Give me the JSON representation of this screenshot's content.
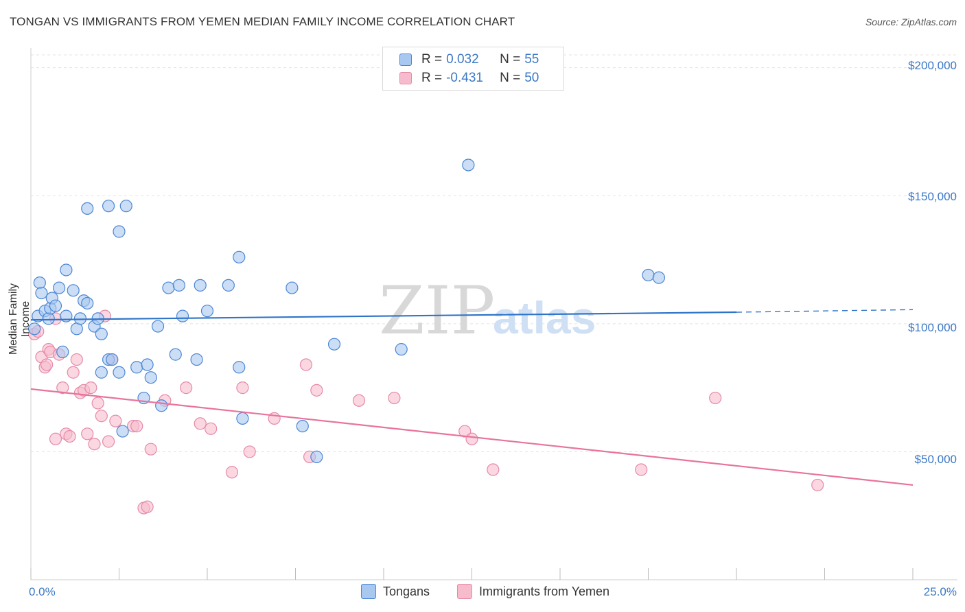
{
  "header": {
    "title": "TONGAN VS IMMIGRANTS FROM YEMEN MEDIAN FAMILY INCOME CORRELATION CHART",
    "source": "Source: ZipAtlas.com"
  },
  "legend": {
    "rows": [
      {
        "r_label": "R =",
        "r_value": "0.032",
        "n_label": "N =",
        "n_value": "55",
        "color": "#a9c8f0"
      },
      {
        "r_label": "R =",
        "r_value": "-0.431",
        "n_label": "N =",
        "n_value": "50",
        "color": "#f6bccd"
      }
    ]
  },
  "bottom_legend": {
    "items": [
      {
        "label": "Tongans",
        "color": "#a9c8f0"
      },
      {
        "label": "Immigrants from Yemen",
        "color": "#f6bccd"
      }
    ]
  },
  "watermark": {
    "zip": "ZIP",
    "atlas": "atlas"
  },
  "colors": {
    "blue_line": "#2f74c8",
    "pink_line": "#e8739c",
    "blue_fill": "#a9c8f0",
    "pink_fill": "#f6bccd",
    "tick_text": "#3b78c6",
    "grid": "#e3e3e3"
  },
  "chart_data": {
    "type": "scatter",
    "title": "TONGAN VS IMMIGRANTS FROM YEMEN MEDIAN FAMILY INCOME CORRELATION CHART",
    "xlabel": "",
    "ylabel": "Median Family Income",
    "xlim": [
      0,
      25
    ],
    "ylim": [
      0,
      205000
    ],
    "x_tick_labels": [
      "0.0%",
      "25.0%"
    ],
    "y_ticks": [
      {
        "value": 50000,
        "label": "$50,000"
      },
      {
        "value": 100000,
        "label": "$100,000"
      },
      {
        "value": 150000,
        "label": "$150,000"
      },
      {
        "value": 200000,
        "label": "$200,000"
      }
    ],
    "series": [
      {
        "name": "Tongans",
        "color": "#a9c8f0",
        "stroke": "#4a86d4",
        "trend": {
          "x0": 0,
          "y0": 101500,
          "x1": 20,
          "y1": 104500,
          "dash_to_x": 25,
          "dash_to_y": 105500
        },
        "points": [
          [
            0.1,
            98000
          ],
          [
            0.2,
            103000
          ],
          [
            0.25,
            116000
          ],
          [
            0.3,
            112000
          ],
          [
            0.4,
            105000
          ],
          [
            0.5,
            102000
          ],
          [
            0.55,
            106000
          ],
          [
            0.6,
            110000
          ],
          [
            0.7,
            107000
          ],
          [
            0.8,
            114000
          ],
          [
            0.9,
            89000
          ],
          [
            1.0,
            121000
          ],
          [
            1.0,
            103000
          ],
          [
            1.2,
            113000
          ],
          [
            1.3,
            98000
          ],
          [
            1.4,
            102000
          ],
          [
            1.5,
            109000
          ],
          [
            1.6,
            108000
          ],
          [
            1.8,
            99000
          ],
          [
            1.9,
            102000
          ],
          [
            2.0,
            96000
          ],
          [
            2.0,
            81000
          ],
          [
            2.2,
            86000
          ],
          [
            2.3,
            86000
          ],
          [
            2.5,
            81000
          ],
          [
            1.6,
            145000
          ],
          [
            2.2,
            146000
          ],
          [
            2.5,
            136000
          ],
          [
            2.7,
            146000
          ],
          [
            2.6,
            58000
          ],
          [
            3.0,
            83000
          ],
          [
            3.2,
            71000
          ],
          [
            3.3,
            84000
          ],
          [
            3.4,
            79000
          ],
          [
            3.6,
            99000
          ],
          [
            3.7,
            68000
          ],
          [
            3.9,
            114000
          ],
          [
            4.1,
            88000
          ],
          [
            4.2,
            115000
          ],
          [
            4.3,
            103000
          ],
          [
            4.7,
            86000
          ],
          [
            4.8,
            115000
          ],
          [
            5.0,
            105000
          ],
          [
            5.6,
            115000
          ],
          [
            5.9,
            83000
          ],
          [
            5.9,
            126000
          ],
          [
            6.0,
            63000
          ],
          [
            7.4,
            114000
          ],
          [
            7.7,
            60000
          ],
          [
            8.1,
            48000
          ],
          [
            8.6,
            92000
          ],
          [
            10.5,
            90000
          ],
          [
            12.4,
            162000
          ],
          [
            17.5,
            119000
          ],
          [
            17.8,
            118000
          ]
        ]
      },
      {
        "name": "Immigrants from Yemen",
        "color": "#f6bccd",
        "stroke": "#e68aa8",
        "trend": {
          "x0": 0,
          "y0": 74500,
          "x1": 25,
          "y1": 37000
        },
        "points": [
          [
            0.1,
            96000
          ],
          [
            0.2,
            97000
          ],
          [
            0.3,
            87000
          ],
          [
            0.4,
            83000
          ],
          [
            0.45,
            84000
          ],
          [
            0.5,
            90000
          ],
          [
            0.55,
            89000
          ],
          [
            0.7,
            102000
          ],
          [
            0.7,
            55000
          ],
          [
            0.8,
            88000
          ],
          [
            0.9,
            75000
          ],
          [
            1.0,
            57000
          ],
          [
            1.1,
            56000
          ],
          [
            1.2,
            81000
          ],
          [
            1.3,
            86000
          ],
          [
            1.4,
            73000
          ],
          [
            1.5,
            74000
          ],
          [
            1.6,
            57000
          ],
          [
            1.7,
            75000
          ],
          [
            1.8,
            53000
          ],
          [
            1.9,
            69000
          ],
          [
            2.0,
            64000
          ],
          [
            2.1,
            103000
          ],
          [
            2.2,
            54000
          ],
          [
            2.3,
            86000
          ],
          [
            2.4,
            62000
          ],
          [
            2.9,
            60000
          ],
          [
            3.0,
            60000
          ],
          [
            3.2,
            28000
          ],
          [
            3.3,
            28500
          ],
          [
            3.4,
            51000
          ],
          [
            3.8,
            70000
          ],
          [
            4.4,
            75000
          ],
          [
            4.8,
            61000
          ],
          [
            5.1,
            59000
          ],
          [
            5.7,
            42000
          ],
          [
            6.0,
            75000
          ],
          [
            6.2,
            50000
          ],
          [
            6.9,
            63000
          ],
          [
            7.8,
            84000
          ],
          [
            7.9,
            48000
          ],
          [
            8.1,
            74000
          ],
          [
            9.3,
            70000
          ],
          [
            10.3,
            71000
          ],
          [
            12.3,
            58000
          ],
          [
            12.5,
            55000
          ],
          [
            13.1,
            43000
          ],
          [
            17.3,
            43000
          ],
          [
            19.4,
            71000
          ],
          [
            22.3,
            37000
          ]
        ]
      }
    ]
  }
}
